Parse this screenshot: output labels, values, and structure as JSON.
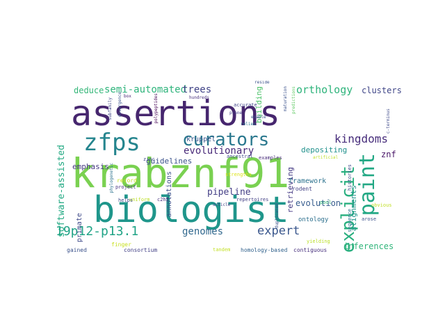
{
  "word_cloud": {
    "words": [
      {
        "text": "assertions",
        "color": "#46266e"
      },
      {
        "text": "krabznf91",
        "color": "#7ad151"
      },
      {
        "text": "biologist",
        "color": "#1f968b"
      },
      {
        "text": "zfps",
        "color": "#25858e"
      },
      {
        "text": "curators",
        "color": "#2a788e"
      },
      {
        "text": "paint",
        "color": "#22a884"
      },
      {
        "text": "explicit",
        "color": "#29af7f"
      },
      {
        "text": "kingdoms",
        "color": "#472d7b"
      },
      {
        "text": "semi-automated",
        "color": "#2fb47c"
      },
      {
        "text": "trees",
        "color": "#414487"
      },
      {
        "text": "orthology",
        "color": "#2fb47c"
      },
      {
        "text": "clusters",
        "color": "#404688"
      },
      {
        "text": "deduce",
        "color": "#35b779"
      },
      {
        "text": "19p12-p13.1",
        "color": "#20a386"
      },
      {
        "text": "genomes",
        "color": "#31688e"
      },
      {
        "text": "expert",
        "color": "#39568c"
      },
      {
        "text": "software-assisted",
        "color": "#23a983"
      },
      {
        "text": "evolutionary",
        "color": "#482878"
      },
      {
        "text": "kruppel",
        "color": "#39568c"
      },
      {
        "text": "guidelines",
        "color": "#3b528b"
      },
      {
        "text": "emphasis",
        "color": "#453882"
      },
      {
        "text": "pipeline",
        "color": "#433e85"
      },
      {
        "text": "retrieving",
        "color": "#443983"
      },
      {
        "text": "evolution",
        "color": "#365c8d"
      },
      {
        "text": "znf",
        "color": "#481467"
      },
      {
        "text": "alignments",
        "color": "#1f948c"
      },
      {
        "text": "inferences",
        "color": "#31b57b"
      },
      {
        "text": "depositing",
        "color": "#21918c"
      },
      {
        "text": "building",
        "color": "#4ec36b"
      },
      {
        "text": "annotations",
        "color": "#3b518b"
      },
      {
        "text": "primate",
        "color": "#3e4989"
      },
      {
        "text": "framework",
        "color": "#2c728e"
      },
      {
        "text": "ontology",
        "color": "#2d708e"
      },
      {
        "text": "homology-based",
        "color": "#33638d"
      },
      {
        "text": "contiguous",
        "color": "#472f7d"
      },
      {
        "text": "consortium",
        "color": "#424086"
      },
      {
        "text": "gained",
        "color": "#3b528b"
      },
      {
        "text": "finger",
        "color": "#c8e020"
      },
      {
        "text": "tandem",
        "color": "#c2df23"
      },
      {
        "text": "record",
        "color": "#c5e021"
      },
      {
        "text": "project",
        "color": "#46307e"
      },
      {
        "text": "uniform",
        "color": "#bddf26"
      },
      {
        "text": "helps",
        "color": "#3f4889"
      },
      {
        "text": "c2h2",
        "color": "#46307e"
      },
      {
        "text": "zinc",
        "color": "#3e4989"
      },
      {
        "text": "phylogenetic",
        "color": "#2c728e"
      },
      {
        "text": "strengths",
        "color": "#dde318"
      },
      {
        "text": "accurate",
        "color": "#414487"
      },
      {
        "text": "enable",
        "color": "#3a548c"
      },
      {
        "text": "prone",
        "color": "#433e85"
      },
      {
        "text": "relies",
        "color": "#2a768e"
      },
      {
        "text": "ancestral",
        "color": "#3e4a89"
      },
      {
        "text": "examples",
        "color": "#472a7a"
      },
      {
        "text": "repertoires",
        "color": "#423f85"
      },
      {
        "text": "article",
        "color": "#404588"
      },
      {
        "text": "rodent",
        "color": "#424186"
      },
      {
        "text": "yielding",
        "color": "#bade28"
      },
      {
        "text": "histories",
        "color": "#3d4d8a"
      },
      {
        "text": "sequence",
        "color": "#2c738e"
      },
      {
        "text": "pool",
        "color": "#35b779"
      },
      {
        "text": "arose",
        "color": "#3b528b"
      },
      {
        "text": "obvious",
        "color": "#c0df25"
      },
      {
        "text": "artificial",
        "color": "#bddf26"
      },
      {
        "text": "hundreds",
        "color": "#472f7d"
      },
      {
        "text": "box",
        "color": "#482173"
      },
      {
        "text": "reside",
        "color": "#3b528b"
      },
      {
        "text": "divergence",
        "color": "#3a548c"
      },
      {
        "text": "polypeptides",
        "color": "#440154"
      },
      {
        "text": "maturation",
        "color": "#3b528b"
      },
      {
        "text": "c-terminus",
        "color": "#3e4989"
      },
      {
        "text": "subfamily",
        "color": "#3f4788"
      },
      {
        "text": "duplicated",
        "color": "#3b528b"
      },
      {
        "text": "predictions",
        "color": "#5ec962"
      }
    ]
  }
}
